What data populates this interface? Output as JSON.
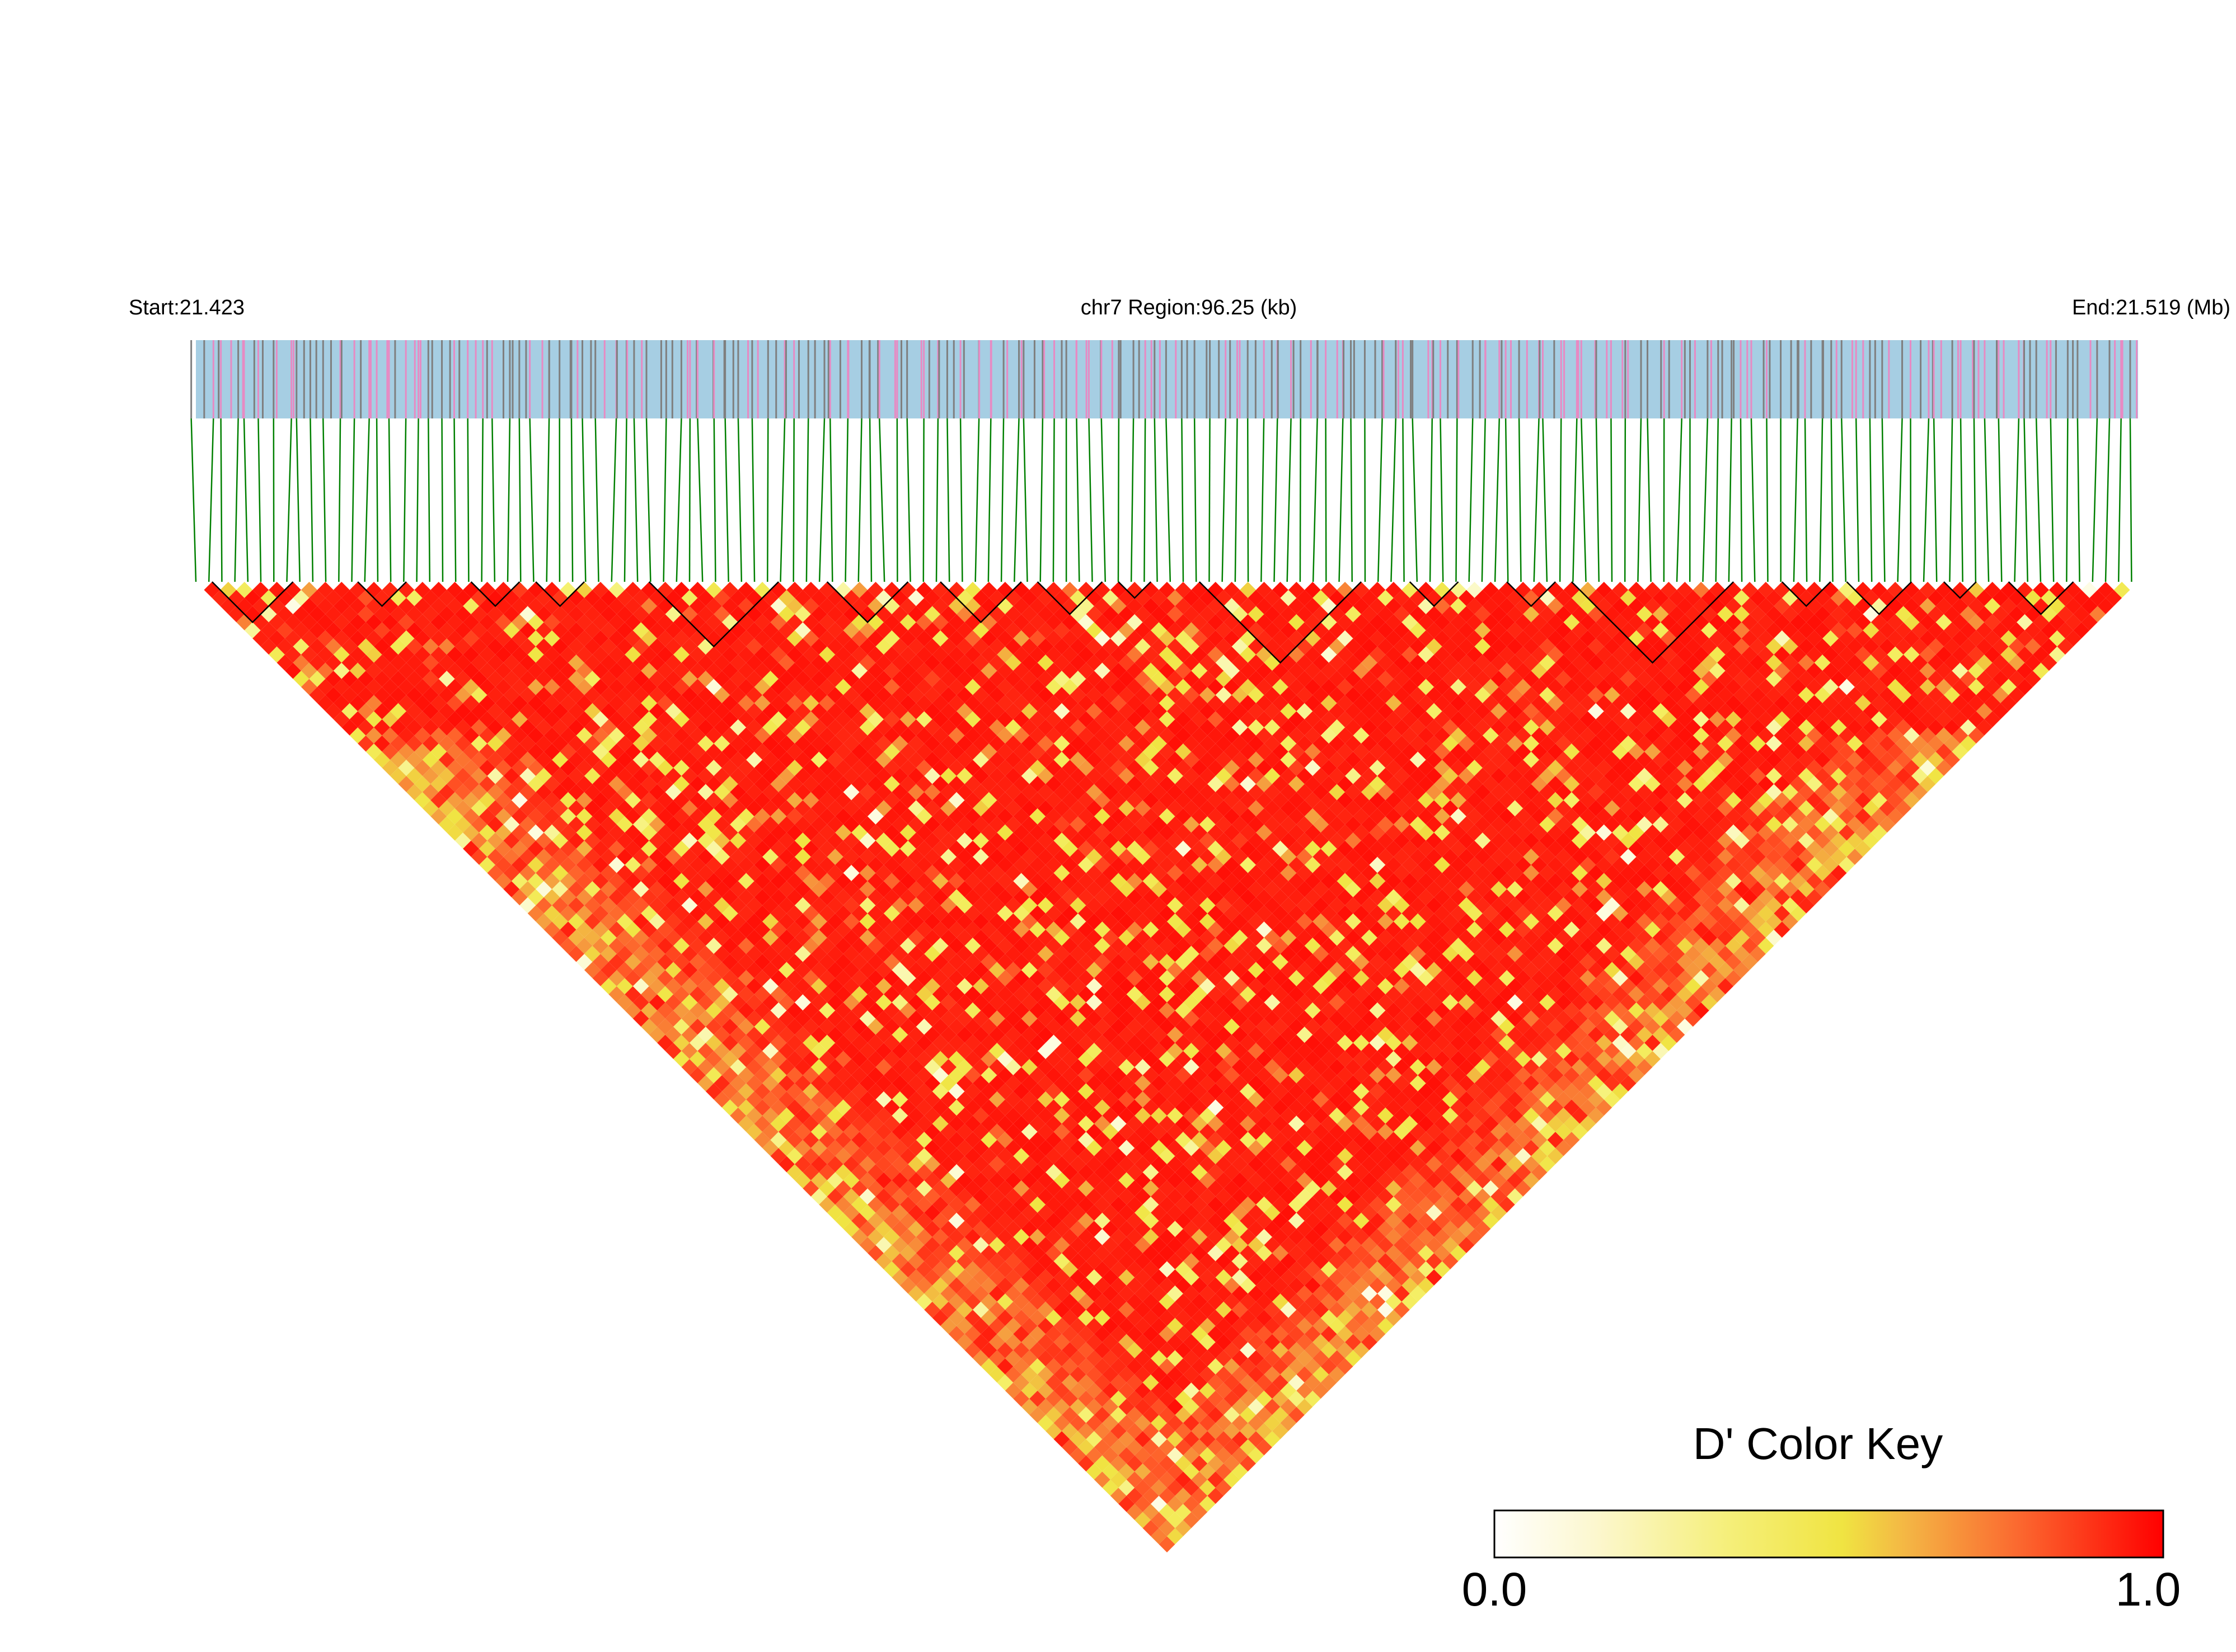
{
  "chart_data": {
    "type": "heatmap",
    "subtype": "linkage-disequilibrium-triangle",
    "metric": "D'",
    "header": {
      "start_label": "Start:21.423",
      "region_label": "chr7 Region:96.25 (kb)",
      "end_label": "End:21.519 (Mb)"
    },
    "region": {
      "chromosome": "chr7",
      "start_mb": 21.423,
      "end_mb": 21.519,
      "span_kb": 96.25
    },
    "snp_count_estimate": 300,
    "value_summary": "predominantly high D' (0.7–1.0, red) with lighter yellow/white bands along the left and right lower edges of the triangle",
    "haplotype_blocks_visible": true,
    "colors": {
      "track_background": "#a6cee3",
      "snp_tick_gray": "#7f7f7f",
      "snp_tick_pink": "#e78ac3",
      "connector_green": "#008000",
      "block_outline": "#000000"
    },
    "color_key": {
      "title": "D' Color Key",
      "min_label": "0.0",
      "max_label": "1.0",
      "range": [
        0.0,
        1.0
      ],
      "stops": [
        "#ffffff",
        "#f5f06a",
        "#f0e442",
        "#f5a040",
        "#ff5a28",
        "#ff0000"
      ]
    }
  }
}
